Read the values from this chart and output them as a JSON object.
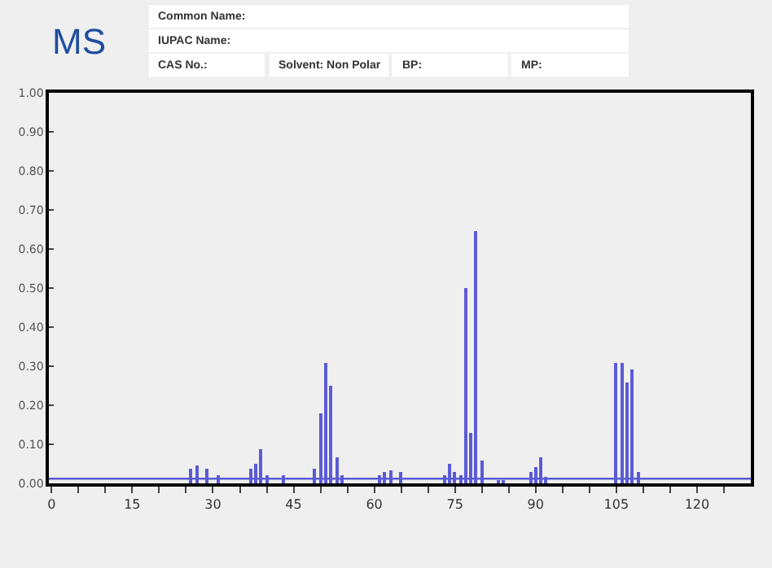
{
  "chart_data": {
    "type": "bar",
    "annotations": [
      "MS",
      "Common Name:",
      "IUPAC Name:",
      "CAS No.:",
      "Solvent: Non Polar",
      "BP:",
      "MP:"
    ],
    "x": [
      26,
      27,
      29,
      31,
      37,
      38,
      39,
      40,
      43,
      49,
      50,
      51,
      52,
      53,
      54,
      61,
      62,
      63,
      65,
      73,
      74,
      75,
      76,
      77,
      78,
      79,
      80,
      83,
      84,
      89,
      90,
      91,
      92,
      105,
      106,
      107,
      108,
      109
    ],
    "values": [
      0.039,
      0.044,
      0.039,
      0.022,
      0.039,
      0.049,
      0.088,
      0.022,
      0.02,
      0.039,
      0.18,
      0.31,
      0.25,
      0.065,
      0.02,
      0.02,
      0.03,
      0.035,
      0.03,
      0.02,
      0.05,
      0.03,
      0.02,
      0.5,
      0.13,
      0.645,
      0.057,
      0.01,
      0.01,
      0.03,
      0.04,
      0.067,
      0.015,
      0.31,
      0.31,
      0.26,
      0.29,
      0.03
    ],
    "color": "#5b5bd6",
    "ref_lines": [
      {
        "axis": "y",
        "value": 0.012,
        "color": "#5b5bd6"
      }
    ],
    "xlim": [
      -0.5,
      130
    ],
    "xticks": [
      0,
      {
        "value": 5,
        "label": null
      },
      {
        "value": 10,
        "label": null
      },
      15,
      {
        "value": 20,
        "label": null
      },
      {
        "value": 25,
        "label": null
      },
      30,
      {
        "value": 35,
        "label": null
      },
      {
        "value": 40,
        "label": null
      },
      45,
      {
        "value": 50,
        "label": null
      },
      {
        "value": 55,
        "label": null
      },
      60,
      {
        "value": 65,
        "label": null
      },
      {
        "value": 70,
        "label": null
      },
      75,
      {
        "value": 80,
        "label": null
      },
      {
        "value": 85,
        "label": null
      },
      90,
      {
        "value": 95,
        "label": null
      },
      {
        "value": 100,
        "label": null
      },
      105,
      {
        "value": 110,
        "label": null
      },
      {
        "value": 115,
        "label": null
      },
      120,
      {
        "value": 125,
        "label": null
      }
    ],
    "ylim": [
      0,
      1.0
    ],
    "yticks": [
      {
        "value": 0,
        "label": "0.00"
      },
      {
        "value": 0.1,
        "label": "0.10"
      },
      {
        "value": 0.2,
        "label": "0.20"
      },
      {
        "value": 0.3,
        "label": "0.30"
      },
      {
        "value": 0.4,
        "label": "0.40"
      },
      {
        "value": 0.5,
        "label": "0.50"
      },
      {
        "value": 0.6,
        "label": "0.60"
      },
      {
        "value": 0.7,
        "label": "0.70"
      },
      {
        "value": 0.8,
        "label": "0.80"
      },
      {
        "value": 0.9,
        "label": "0.90"
      },
      {
        "value": 1.0,
        "label": "1.00"
      }
    ],
    "grid": false,
    "legend": false
  }
}
